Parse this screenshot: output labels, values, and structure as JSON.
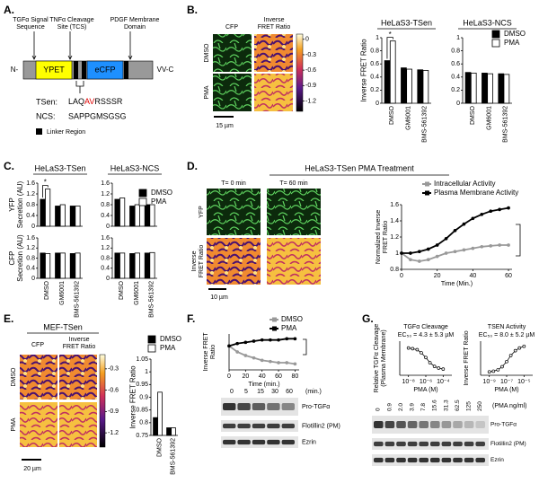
{
  "A": {
    "label": "A.",
    "annotations": [
      [
        "TGFα Signal",
        "Sequence"
      ],
      [
        "TNFα Cleavage",
        "Site (TCS)"
      ],
      [
        "PDGF Membrane",
        "Domain"
      ]
    ],
    "n_term": "N-",
    "c_term": "VV-C",
    "ypet": "YPET",
    "ecfp": "eCFP",
    "tsen_label": "TSen:",
    "tsen_seq": [
      "LAQ",
      "AV",
      "RSSSR"
    ],
    "ncs_label": "NCS:",
    "ncs_seq": "SAPPGMSGSG",
    "legend": "Linker Region"
  },
  "B": {
    "label": "B.",
    "cfp": "CFP",
    "fret": [
      "Inverse",
      "FRET Ratio"
    ],
    "dmso": "DMSO",
    "pma": "PMA",
    "scale": "15 µm",
    "colorbar_lim": [
      -1.4,
      0.1
    ],
    "colorbar_ticks": [
      -1.2,
      -0.9,
      -0.6,
      -0.3,
      0
    ],
    "charts": [
      {
        "type": "bar",
        "title": "HeLaS3-TSen",
        "ylabel": "Inverse FRET Ratio",
        "annotation": "*",
        "categories": [
          "DMSO",
          "GM6001",
          "BMS-561392"
        ],
        "series": [
          {
            "name": "DMSO",
            "color": "#000000",
            "values": [
              0.65,
              0.54,
              0.51
            ]
          },
          {
            "name": "PMA",
            "color": "#ffffff",
            "values": [
              0.95,
              0.52,
              0.5
            ]
          }
        ],
        "ylim": [
          0,
          1
        ],
        "yticks": [
          0,
          0.2,
          0.4,
          0.6,
          0.8,
          1
        ]
      },
      {
        "type": "bar",
        "title": "HeLaS3-NCS",
        "legend": true,
        "categories": [
          "DMSO",
          "GM6001",
          "BMS-561392"
        ],
        "series": [
          {
            "name": "DMSO",
            "color": "#000000",
            "values": [
              0.47,
              0.46,
              0.45
            ]
          },
          {
            "name": "PMA",
            "color": "#ffffff",
            "values": [
              0.46,
              0.45,
              0.44
            ]
          }
        ],
        "ylim": [
          0,
          1
        ],
        "yticks": [
          0,
          0.2,
          0.4,
          0.6,
          0.8,
          1
        ]
      }
    ]
  },
  "C": {
    "label": "C.",
    "charts": [
      {
        "type": "bar",
        "title": "HeLaS3-TSen",
        "ylabel": [
          "YFP",
          "Secretion (AU)"
        ],
        "annotation": "*",
        "series": [
          {
            "name": "DMSO",
            "color": "#000000",
            "values": [
              1.0,
              0.75,
              0.75
            ]
          },
          {
            "name": "PMA",
            "color": "#ffffff",
            "values": [
              1.38,
              0.8,
              0.75
            ]
          }
        ],
        "ylim": [
          0,
          1.6
        ],
        "yticks": [
          0,
          0.4,
          0.8,
          1.2,
          1.6
        ]
      },
      {
        "type": "bar",
        "title": "HeLaS3-NCS",
        "legend": true,
        "series": [
          {
            "name": "DMSO",
            "color": "#000000",
            "values": [
              1.0,
              0.75,
              0.8
            ]
          },
          {
            "name": "PMA",
            "color": "#ffffff",
            "values": [
              1.05,
              0.8,
              0.8
            ]
          }
        ],
        "ylim": [
          0,
          1.6
        ],
        "yticks": [
          0,
          0.4,
          0.8,
          1.2,
          1.6
        ]
      },
      {
        "type": "bar",
        "ylabel": [
          "CFP",
          "Secretion (AU)"
        ],
        "categories": [
          "DMSO",
          "GM6001",
          "BMS-561392"
        ],
        "series": [
          {
            "name": "DMSO",
            "color": "#000000",
            "values": [
              1.0,
              1.0,
              0.98
            ]
          },
          {
            "name": "PMA",
            "color": "#ffffff",
            "values": [
              0.98,
              1.0,
              1.0
            ]
          }
        ],
        "ylim": [
          0,
          1.6
        ],
        "yticks": [
          0,
          0.4,
          0.8,
          1.2,
          1.6
        ]
      },
      {
        "type": "bar",
        "categories": [
          "DMSO",
          "GM6001",
          "BMS-561392"
        ],
        "series": [
          {
            "name": "DMSO",
            "color": "#000000",
            "values": [
              1.0,
              0.98,
              1.0
            ]
          },
          {
            "name": "PMA",
            "color": "#ffffff",
            "values": [
              1.0,
              1.0,
              1.02
            ]
          }
        ],
        "ylim": [
          0,
          1.6
        ],
        "yticks": [
          0,
          0.4,
          0.8,
          1.2,
          1.6
        ]
      }
    ]
  },
  "D": {
    "label": "D.",
    "title": "HeLaS3-TSen PMA Treatment",
    "t0": "T= 0 min",
    "t60": "T= 60 min",
    "yfp": "YFP",
    "fret": [
      "Inverse",
      "FRET Ratio"
    ],
    "scale": "10 µm",
    "chart": {
      "type": "line",
      "ylabel": [
        "Normalized Inverse",
        "FRET Ratio"
      ],
      "xlabel": "Time (Min.)",
      "legend": true,
      "x": [
        0,
        5,
        10,
        15,
        20,
        25,
        30,
        35,
        40,
        45,
        50,
        55,
        60
      ],
      "series": [
        {
          "name": "Intracellular Activity",
          "color": "#999999",
          "values": [
            1.0,
            0.92,
            0.9,
            0.92,
            0.96,
            1.0,
            1.02,
            1.04,
            1.06,
            1.08,
            1.09,
            1.1,
            1.1
          ]
        },
        {
          "name": "Plasma Membrane Activity",
          "color": "#000000",
          "values": [
            1.0,
            1.0,
            1.02,
            1.05,
            1.1,
            1.18,
            1.28,
            1.36,
            1.43,
            1.48,
            1.52,
            1.54,
            1.56
          ]
        }
      ],
      "xlim": [
        0,
        62
      ],
      "xticks": [
        0,
        20,
        40,
        60
      ],
      "ylim": [
        0.8,
        1.6
      ],
      "yticks": [
        0.8,
        1,
        1.2,
        1.4,
        1.6
      ]
    }
  },
  "E": {
    "label": "E.",
    "title": "MEF-TSen",
    "cfp": "CFP",
    "fret": [
      "Inverse",
      "FRET Ratio"
    ],
    "dmso": "DMSO",
    "pma": "PMA",
    "scale": "20 µm",
    "colorbar_lim": [
      -1.4,
      -0.1
    ],
    "colorbar_ticks": [
      -1.2,
      -0.9,
      -0.6,
      -0.3
    ],
    "chart": {
      "type": "bar",
      "ylabel": "Inverse FRET Ratio",
      "legend": true,
      "categories": [
        "DMSO",
        "BMS-561392"
      ],
      "series": [
        {
          "name": "DMSO",
          "color": "#000000",
          "values": [
            0.82,
            0.78
          ]
        },
        {
          "name": "PMA",
          "color": "#ffffff",
          "values": [
            0.92,
            0.78
          ]
        }
      ],
      "ylim": [
        0.75,
        1.05
      ],
      "yticks": [
        0.75,
        0.8,
        0.85,
        0.9,
        0.95,
        1,
        1.05
      ]
    }
  },
  "F": {
    "label": "F.",
    "chart": {
      "type": "line",
      "ylabel": [
        "Inverse FRET",
        "Ratio"
      ],
      "xlabel": "Time (min.)",
      "legend": true,
      "x": [
        0,
        10,
        20,
        30,
        40,
        50,
        60,
        70,
        80
      ],
      "series": [
        {
          "name": "DMSO",
          "color": "#999999",
          "values": [
            1.0,
            0.95,
            0.92,
            0.9,
            0.88,
            0.87,
            0.86,
            0.86,
            0.85
          ]
        },
        {
          "name": "PMA",
          "color": "#000000",
          "values": [
            1.0,
            1.02,
            1.03,
            1.04,
            1.05,
            1.05,
            1.05,
            1.06,
            1.06
          ]
        }
      ],
      "xlim": [
        0,
        85
      ],
      "xticks": [
        0,
        20,
        40,
        60,
        80
      ],
      "ylim": [
        0.8,
        1.1
      ]
    },
    "lanes": [
      "0",
      "5",
      "15",
      "30",
      "60"
    ],
    "lane_unit": "(min.)",
    "blots": [
      "Pro-TGFα",
      "Flotillin2 (PM)",
      "Ezrin"
    ]
  },
  "G": {
    "label": "G.",
    "charts": [
      {
        "type": "line",
        "markers_only_fit": true,
        "title": "TGFα Cleavage",
        "subtitle": "EC₅₀ = 4.3 ± 5.3 µM",
        "ylabel": [
          "Relative TGFα Cleavage",
          "(Plasma Membrane)"
        ],
        "xlabel": "PMA (M)",
        "xlog": true,
        "x": [
          1e-08,
          3e-08,
          1e-07,
          3e-07,
          1e-06,
          3e-06,
          1e-05,
          3e-05,
          0.0001
        ],
        "series": [
          {
            "name": null,
            "color": "#000000",
            "values": [
              1.0,
              0.98,
              0.95,
              0.86,
              0.72,
              0.57,
              0.46,
              0.41,
              0.38
            ]
          }
        ],
        "xlim": [
          1e-09,
          0.001
        ],
        "xticks": [
          {
            "value": 1e-08,
            "label": "10⁻⁸"
          },
          {
            "value": 1e-06,
            "label": "10⁻⁶"
          },
          {
            "value": 0.0001,
            "label": "10⁻⁴"
          }
        ],
        "ylim": [
          0.2,
          1.2
        ]
      },
      {
        "type": "line",
        "title": "TSEN Activity",
        "subtitle": "EC₅₀ = 8.0 ± 5.2 µM",
        "ylabel": "Inverse FRET Ratio",
        "xlabel": "PMA (M)",
        "xlog": true,
        "x": [
          1e-09,
          3e-09,
          1e-08,
          3e-08,
          1e-07,
          3e-07,
          1e-06,
          3e-06,
          1e-05
        ],
        "series": [
          {
            "name": null,
            "color": "#000000",
            "values": [
              0.3,
              0.32,
              0.36,
              0.45,
              0.6,
              0.78,
              0.92,
              1.0,
              1.05
            ]
          }
        ],
        "xlim": [
          1e-10,
          0.0001
        ],
        "xticks": [
          {
            "value": 1e-09,
            "label": "10⁻⁹"
          },
          {
            "value": 1e-07,
            "label": "10⁻⁷"
          },
          {
            "value": 1e-05,
            "label": "10⁻⁵"
          }
        ],
        "ylim": [
          0.2,
          1.2
        ]
      }
    ],
    "lanes": [
      "0",
      "0.9",
      "2.0",
      "3.9",
      "7.8",
      "15.6",
      "31.3",
      "62.5",
      "125",
      "250"
    ],
    "lane_unit": "(PMA ng/ml)",
    "blots": [
      "Pro-TGFα",
      "Flotillin2 (PM)",
      "Ezrin"
    ]
  }
}
